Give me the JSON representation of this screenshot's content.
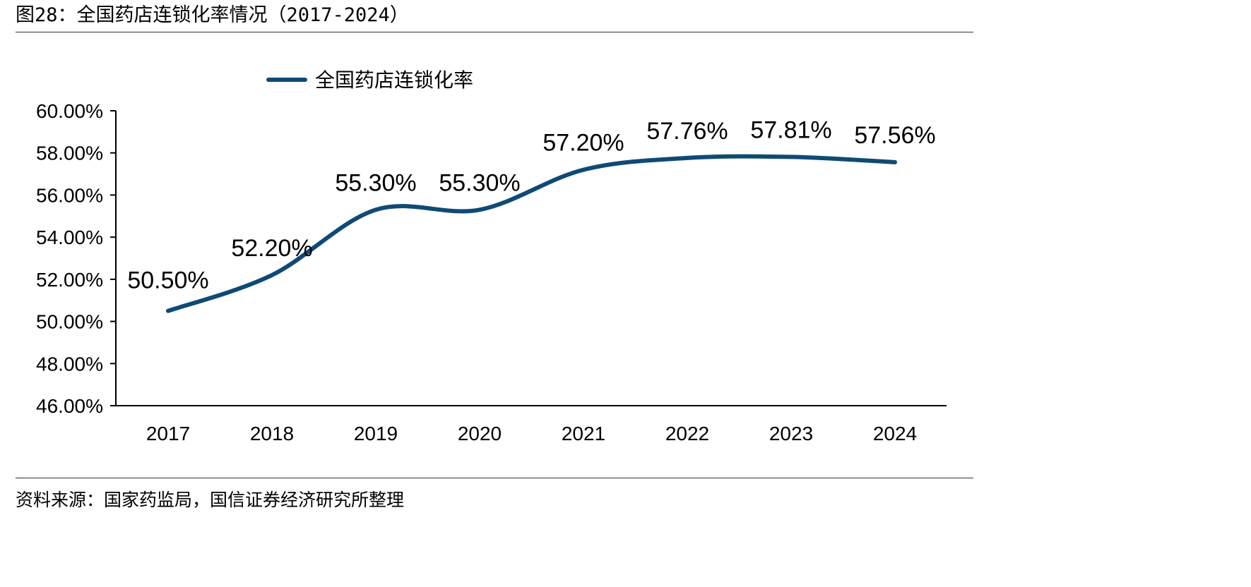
{
  "figure": {
    "title": "图28：全国药店连锁化率情况（2017-2024）",
    "source": "资料来源：国家药监局，国信证券经济研究所整理"
  },
  "colors": {
    "series_line": "#0f4a75",
    "axis": "#000000",
    "rule": "#333333"
  },
  "chart_data": {
    "type": "line",
    "title": "",
    "xlabel": "",
    "ylabel": "",
    "categories": [
      "2017",
      "2018",
      "2019",
      "2020",
      "2021",
      "2022",
      "2023",
      "2024"
    ],
    "series": [
      {
        "name": "全国药店连锁化率",
        "values": [
          50.5,
          52.2,
          55.3,
          55.3,
          57.2,
          57.76,
          57.81,
          57.56
        ],
        "data_labels": [
          "50.50%",
          "52.20%",
          "55.30%",
          "55.30%",
          "57.20%",
          "57.76%",
          "57.81%",
          "57.56%"
        ]
      }
    ],
    "ylim": [
      46,
      60
    ],
    "yticks": [
      46,
      48,
      50,
      52,
      54,
      56,
      58,
      60
    ],
    "ytick_labels": [
      "46.00%",
      "48.00%",
      "50.00%",
      "52.00%",
      "54.00%",
      "56.00%",
      "58.00%",
      "60.00%"
    ],
    "smooth": true,
    "grid": false,
    "legend_position": "top-left"
  }
}
